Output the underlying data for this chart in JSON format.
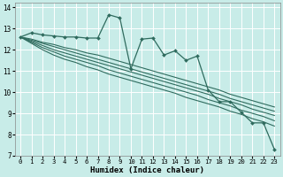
{
  "xlabel": "Humidex (Indice chaleur)",
  "bg_color": "#c8ece8",
  "grid_color": "#ffffff",
  "line_color": "#2f6b5e",
  "xlim": [
    -0.5,
    23.5
  ],
  "ylim": [
    7,
    14.2
  ],
  "xticks": [
    0,
    1,
    2,
    3,
    4,
    5,
    6,
    7,
    8,
    9,
    10,
    11,
    12,
    13,
    14,
    15,
    16,
    17,
    18,
    19,
    20,
    21,
    22,
    23
  ],
  "yticks": [
    7,
    8,
    9,
    10,
    11,
    12,
    13,
    14
  ],
  "x": [
    0,
    1,
    2,
    3,
    4,
    5,
    6,
    7,
    8,
    9,
    10,
    11,
    12,
    13,
    14,
    15,
    16,
    17,
    18,
    19,
    20,
    21,
    22,
    23
  ],
  "main_y": [
    12.6,
    12.8,
    12.7,
    12.65,
    12.6,
    12.6,
    12.55,
    12.55,
    13.65,
    13.5,
    11.1,
    12.5,
    12.55,
    11.75,
    11.95,
    11.5,
    11.7,
    10.1,
    9.55,
    9.55,
    9.05,
    8.55,
    8.55,
    7.3
  ],
  "line1_y": [
    12.6,
    12.5,
    12.35,
    12.25,
    12.1,
    12.0,
    11.85,
    11.75,
    11.6,
    11.45,
    11.3,
    11.15,
    11.0,
    10.85,
    10.7,
    10.55,
    10.4,
    10.25,
    10.1,
    9.9,
    9.75,
    9.6,
    9.45,
    9.3
  ],
  "line2_y": [
    12.6,
    12.45,
    12.3,
    12.15,
    12.0,
    11.85,
    11.7,
    11.55,
    11.4,
    11.25,
    11.1,
    10.95,
    10.8,
    10.65,
    10.5,
    10.35,
    10.2,
    10.05,
    9.9,
    9.7,
    9.55,
    9.4,
    9.25,
    9.1
  ],
  "line3_y": [
    12.6,
    12.4,
    12.2,
    12.0,
    11.85,
    11.7,
    11.55,
    11.4,
    11.25,
    11.1,
    10.95,
    10.8,
    10.65,
    10.5,
    10.35,
    10.2,
    10.05,
    9.9,
    9.7,
    9.55,
    9.4,
    9.2,
    9.05,
    8.9
  ],
  "line4_y": [
    12.6,
    12.35,
    12.1,
    11.9,
    11.7,
    11.55,
    11.4,
    11.25,
    11.05,
    10.9,
    10.75,
    10.6,
    10.45,
    10.3,
    10.15,
    10.0,
    9.85,
    9.65,
    9.5,
    9.35,
    9.15,
    9.0,
    8.85,
    8.65
  ],
  "line5_y": [
    12.6,
    12.3,
    12.0,
    11.75,
    11.55,
    11.4,
    11.2,
    11.05,
    10.85,
    10.7,
    10.55,
    10.4,
    10.25,
    10.1,
    9.95,
    9.75,
    9.6,
    9.45,
    9.3,
    9.1,
    8.95,
    8.75,
    8.6,
    8.4
  ]
}
